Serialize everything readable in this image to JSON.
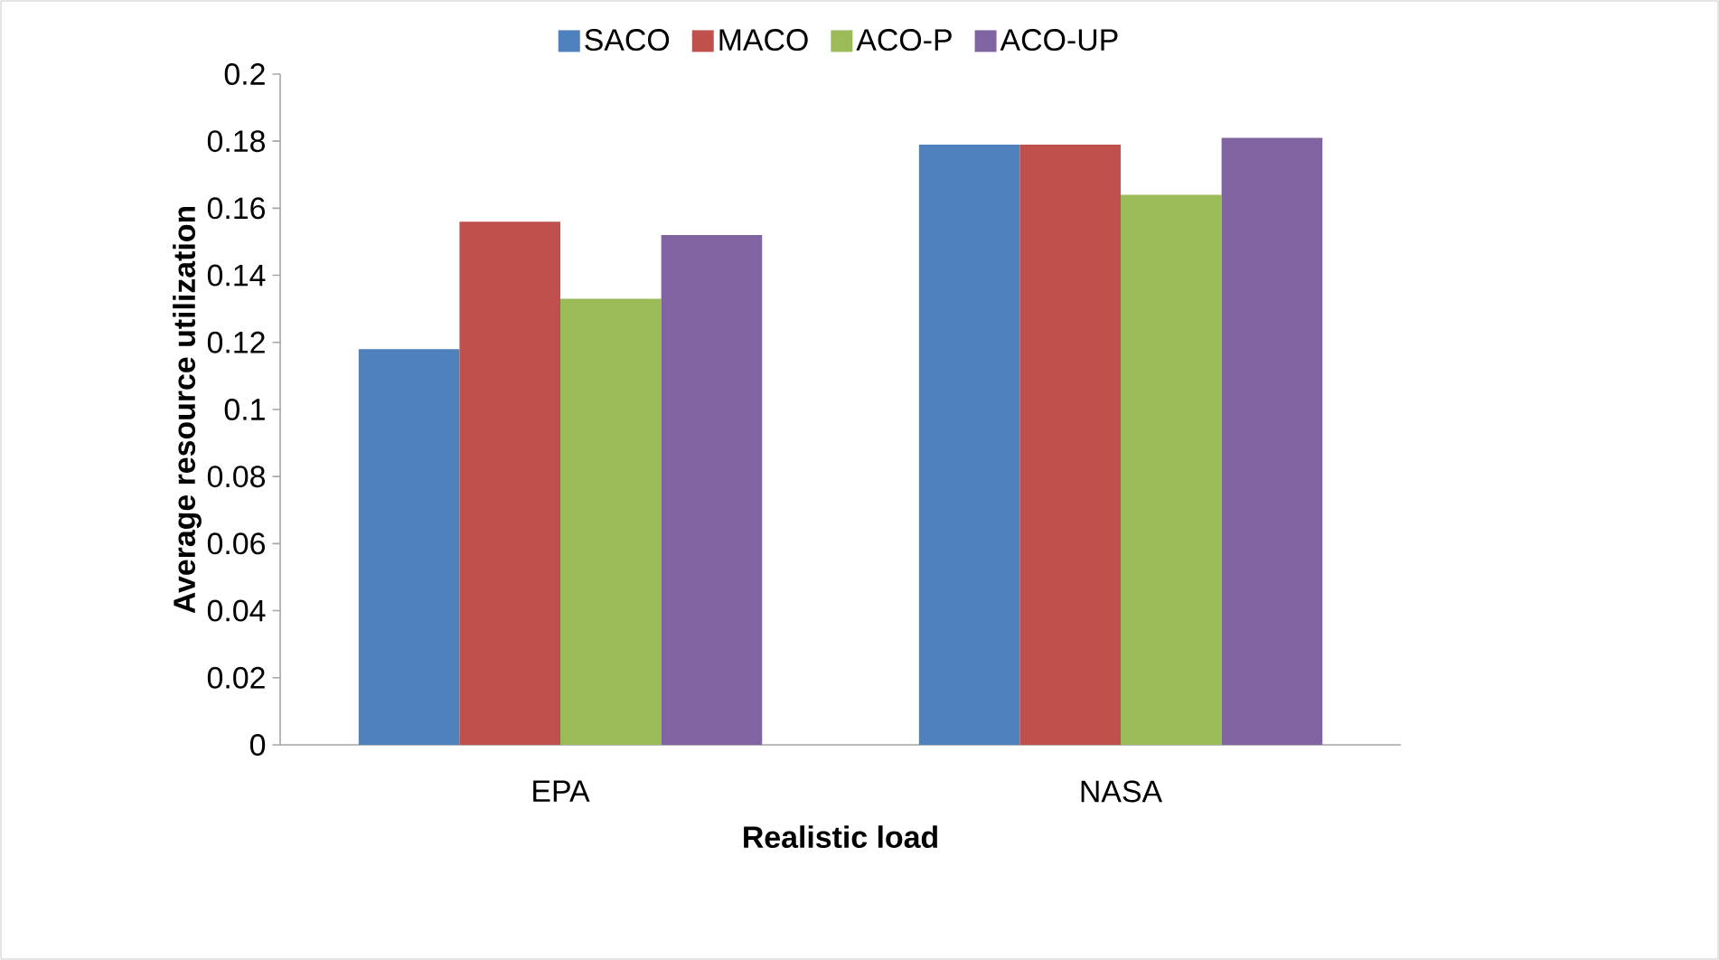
{
  "chart_data": {
    "type": "bar",
    "xlabel": "Realistic load",
    "ylabel": "Average resource utilization",
    "categories": [
      "EPA",
      "NASA"
    ],
    "series": [
      {
        "name": "SACO",
        "color": "#4f81bd",
        "values": [
          0.118,
          0.179
        ]
      },
      {
        "name": "MACO",
        "color": "#c0504d",
        "values": [
          0.156,
          0.179
        ]
      },
      {
        "name": "ACO-P",
        "color": "#9bbb59",
        "values": [
          0.133,
          0.164
        ]
      },
      {
        "name": "ACO-UP",
        "color": "#8064a2",
        "values": [
          0.152,
          0.181
        ]
      }
    ],
    "ylim": [
      0,
      0.2
    ],
    "yticks": [
      0,
      0.02,
      0.04,
      0.06,
      0.08,
      0.1,
      0.12,
      0.14,
      0.16,
      0.18,
      0.2
    ],
    "legend": "top",
    "grid": false
  }
}
